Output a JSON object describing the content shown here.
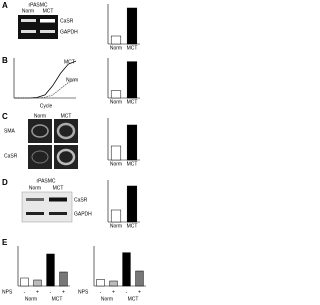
{
  "panels": [
    {
      "label": "A",
      "cell": "rPASMC",
      "lanes": [
        "Norm",
        "MCT"
      ],
      "bands": [
        "CaSR",
        "GAPDH"
      ],
      "chart": {
        "type": "bar",
        "categories": [
          "Norm",
          "MCT"
        ],
        "values": [
          1,
          4.5
        ],
        "ylim": [
          0,
          5
        ],
        "colors": [
          "#ffffff",
          "#000000"
        ]
      }
    },
    {
      "label": "B",
      "x_label": "Cycle",
      "line": {
        "type": "line",
        "x": [
          0,
          5,
          10,
          15,
          20,
          25,
          30,
          35,
          40
        ],
        "xlim": [
          0,
          40
        ],
        "ylim": [
          0,
          6.5
        ],
        "series": [
          {
            "name": "MCT",
            "color": "#000000",
            "values": [
              0,
              0,
              0,
              0.1,
              0.5,
              2,
              4,
              5.5,
              6
            ]
          },
          {
            "name": "Norm",
            "color": "#555555",
            "values": [
              0,
              0,
              0,
              0,
              0.1,
              0.5,
              1.5,
              2.5,
              3
            ]
          }
        ]
      },
      "chart": {
        "type": "bar",
        "categories": [
          "Norm",
          "MCT"
        ],
        "values": [
          1,
          5
        ],
        "ylim": [
          0,
          5.5
        ],
        "colors": [
          "#ffffff",
          "#000000"
        ]
      }
    },
    {
      "label": "C",
      "columns": [
        "Norm",
        "MCT"
      ],
      "rows": [
        "SMA",
        "CaSR"
      ],
      "chart": {
        "type": "bar",
        "categories": [
          "Norm",
          "MCT"
        ],
        "values": [
          1,
          2.5
        ],
        "ylim": [
          0,
          3
        ],
        "colors": [
          "#ffffff",
          "#000000"
        ]
      }
    },
    {
      "label": "D",
      "cell": "rPASMC",
      "lanes": [
        "Norm",
        "MCT"
      ],
      "bands": [
        "CaSR",
        "GAPDH"
      ],
      "chart": {
        "type": "bar",
        "categories": [
          "Norm",
          "MCT"
        ],
        "values": [
          1,
          3
        ],
        "ylim": [
          0,
          3.5
        ],
        "colors": [
          "#ffffff",
          "#000000"
        ]
      }
    },
    {
      "label": "E",
      "nps_label": "NPS",
      "nps": [
        "-",
        "+",
        "-",
        "+"
      ],
      "groups": [
        "Norm",
        "MCT"
      ],
      "charts": [
        {
          "type": "bar",
          "values": [
            0.2,
            0.15,
            0.8,
            0.35
          ],
          "ylim": [
            0,
            1
          ],
          "colors": [
            "#ffffff",
            "#bbbbbb",
            "#000000",
            "#777777"
          ]
        },
        {
          "type": "bar",
          "values": [
            0.2,
            0.15,
            1,
            0.45
          ],
          "ylim": [
            0,
            1.2
          ],
          "colors": [
            "#ffffff",
            "#bbbbbb",
            "#000000",
            "#777777"
          ]
        }
      ]
    }
  ]
}
